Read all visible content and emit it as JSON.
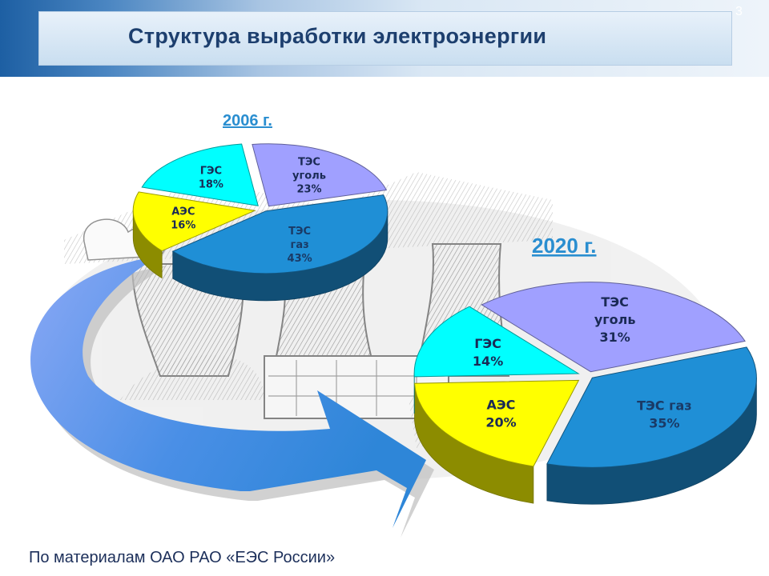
{
  "slide": {
    "title": "Структура выработки электроэнергии",
    "number": "3",
    "source": "По материалам ОАО РАО «ЕЭС России»"
  },
  "colors": {
    "tes_gas": "#1f8fd6",
    "aes": "#ffff00",
    "ges": "#00ffff",
    "tes_coal": "#a0a0ff",
    "year_label": "#2a8ed0",
    "arrow": "#3d8fe0"
  },
  "chart_data": [
    {
      "type": "pie",
      "title": "2006 г.",
      "slices": [
        {
          "key": "tes_gas",
          "lines": [
            "ТЭС",
            "газ",
            "43%"
          ],
          "value": 43
        },
        {
          "key": "aes",
          "lines": [
            "АЭС",
            "16%"
          ],
          "value": 16
        },
        {
          "key": "ges",
          "lines": [
            "ГЭС",
            "18%"
          ],
          "value": 18
        },
        {
          "key": "tes_coal",
          "lines": [
            "ТЭС",
            "уголь",
            "23%"
          ],
          "value": 23
        }
      ]
    },
    {
      "type": "pie",
      "title": "2020 г.",
      "slices": [
        {
          "key": "tes_gas",
          "lines": [
            "ТЭС газ",
            "35%"
          ],
          "value": 35
        },
        {
          "key": "aes",
          "lines": [
            "АЭС",
            "20%"
          ],
          "value": 20
        },
        {
          "key": "ges",
          "lines": [
            "ГЭС",
            "14%"
          ],
          "value": 14
        },
        {
          "key": "tes_coal",
          "lines": [
            "ТЭС",
            "уголь",
            "31%"
          ],
          "value": 31
        }
      ]
    }
  ]
}
